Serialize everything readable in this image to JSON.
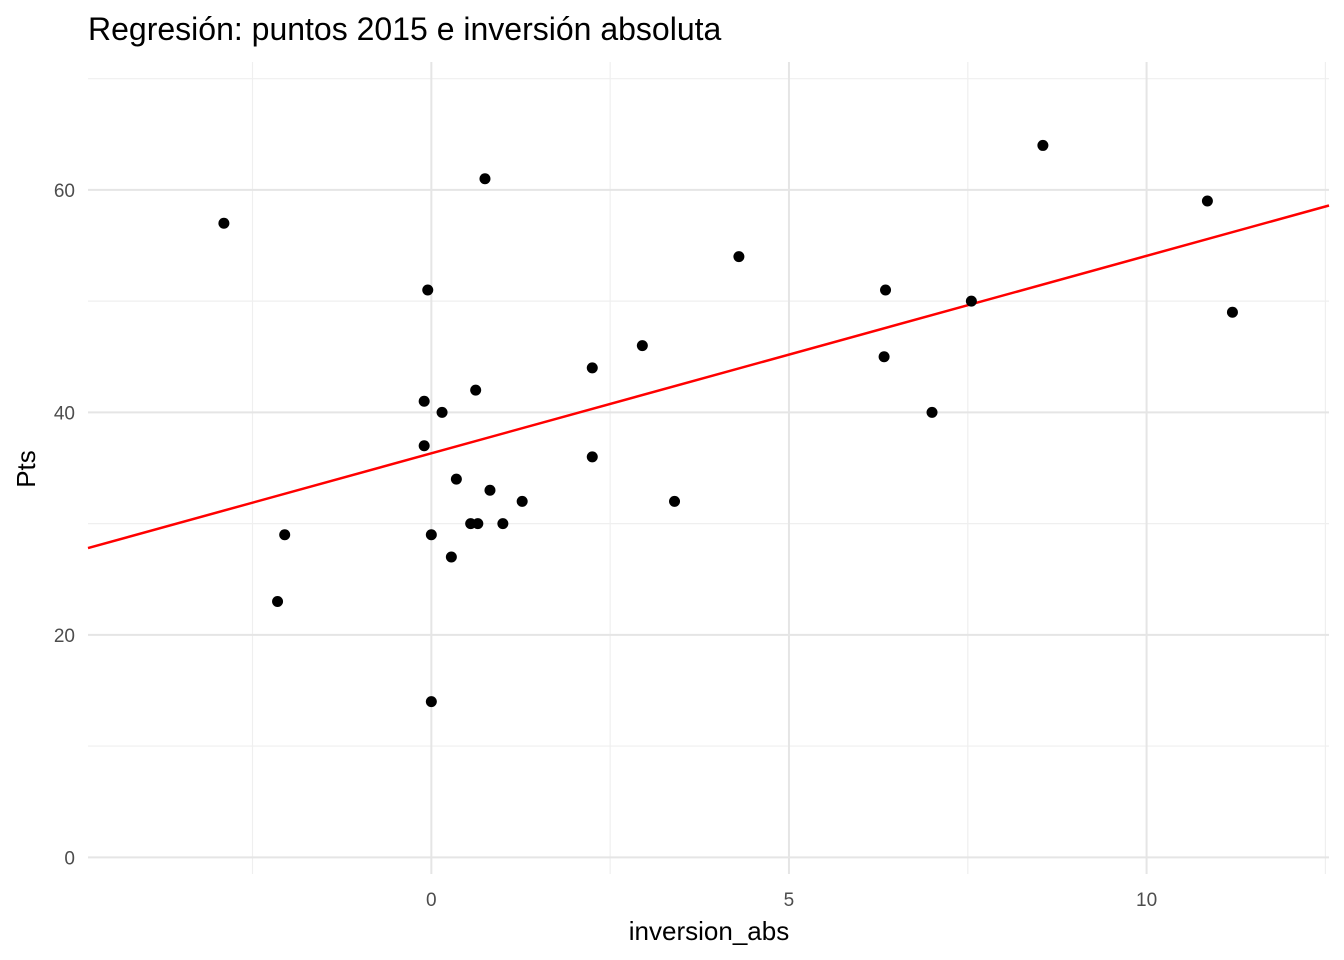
{
  "chart_data": {
    "type": "scatter",
    "title": "Regresión: puntos 2015 e inversión absoluta",
    "xlabel": "inversion_abs",
    "ylabel": "Pts",
    "xlim": [
      -4.8,
      12.55
    ],
    "ylim": [
      -1.5,
      71.5
    ],
    "x_major_ticks": [
      0,
      5,
      10
    ],
    "x_minor_ticks": [
      -2.5,
      2.5,
      7.5,
      12.5
    ],
    "y_major_ticks": [
      0,
      20,
      40,
      60
    ],
    "y_minor_ticks": [
      10,
      30,
      50,
      70
    ],
    "x_tick_labels": [
      "0",
      "5",
      "10"
    ],
    "y_tick_labels": [
      "0",
      "20",
      "40",
      "60"
    ],
    "grid": true,
    "point_color": "#000000",
    "line_color": "#ff0000",
    "points": [
      {
        "x": -2.9,
        "y": 57
      },
      {
        "x": -2.05,
        "y": 29
      },
      {
        "x": -2.15,
        "y": 23
      },
      {
        "x": -0.05,
        "y": 51
      },
      {
        "x": -0.1,
        "y": 41
      },
      {
        "x": -0.1,
        "y": 37
      },
      {
        "x": 0.0,
        "y": 29
      },
      {
        "x": 0.0,
        "y": 14
      },
      {
        "x": 0.15,
        "y": 40
      },
      {
        "x": 0.28,
        "y": 27
      },
      {
        "x": 0.35,
        "y": 34
      },
      {
        "x": 0.55,
        "y": 30
      },
      {
        "x": 0.65,
        "y": 30
      },
      {
        "x": 0.62,
        "y": 42
      },
      {
        "x": 0.75,
        "y": 61
      },
      {
        "x": 0.82,
        "y": 33
      },
      {
        "x": 1.0,
        "y": 30
      },
      {
        "x": 1.27,
        "y": 32
      },
      {
        "x": 2.25,
        "y": 44
      },
      {
        "x": 2.25,
        "y": 36
      },
      {
        "x": 2.95,
        "y": 46
      },
      {
        "x": 3.4,
        "y": 32
      },
      {
        "x": 4.3,
        "y": 54
      },
      {
        "x": 6.35,
        "y": 51
      },
      {
        "x": 6.33,
        "y": 45
      },
      {
        "x": 7.0,
        "y": 40
      },
      {
        "x": 7.55,
        "y": 50
      },
      {
        "x": 8.55,
        "y": 64
      },
      {
        "x": 10.85,
        "y": 59
      },
      {
        "x": 11.2,
        "y": 49
      }
    ],
    "regression_line": {
      "x": [
        -4.8,
        12.55
      ],
      "y": [
        27.8,
        58.6
      ]
    }
  }
}
